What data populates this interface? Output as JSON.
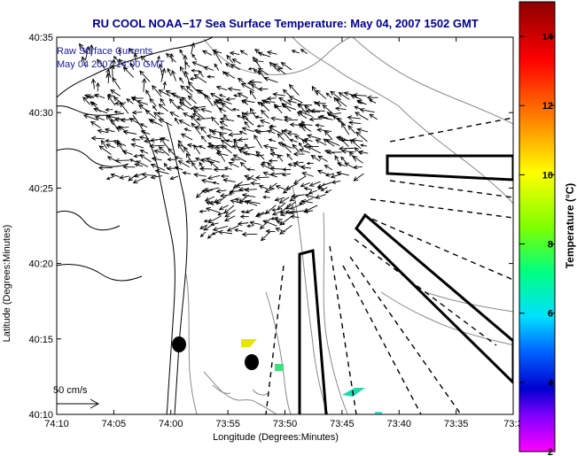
{
  "chart_data": {
    "type": "vector-field",
    "title": "RU COOL  NOAA−17  Sea Surface Temperature:  May 04, 2007 1502 GMT",
    "legend": [
      "Raw Surface Currents",
      "May 04 2007 14:00 GMT"
    ],
    "xlabel": "Longitude (Degrees:Minutes)",
    "ylabel": "Latitude (Degrees:Minutes)",
    "x_ticks": [
      "74:10",
      "74:05",
      "74:00",
      "73:55",
      "73:50",
      "73:45",
      "73:40",
      "73:35",
      "73:3"
    ],
    "y_ticks": [
      "40:35",
      "40:30",
      "40:25",
      "40:20",
      "40:15",
      "40:10"
    ],
    "scale_label": "50 cm/s",
    "colorbar": {
      "label": "Temperature (°C)",
      "ticks": [
        14,
        12,
        10,
        8,
        6,
        4,
        2
      ],
      "range": [
        2,
        15
      ]
    }
  }
}
